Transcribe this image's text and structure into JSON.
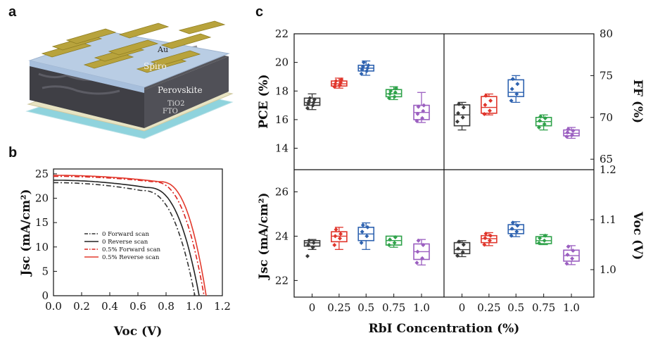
{
  "panel_labels": {
    "a": "a",
    "b": "b",
    "c": "c"
  },
  "device_layers": [
    "Au",
    "Spiro",
    "Perovskite",
    "TiO2",
    "FTO"
  ],
  "device_layer_colors": {
    "Au": "#b8a33c",
    "Spiro": "#b9cde4",
    "Perovskite": "#4a4a4f",
    "TiO2": "#e7e3c2",
    "FTO": "#8fd3dd"
  },
  "chart_data": [
    {
      "panel": "b",
      "type": "line",
      "xlabel": "Voc (V)",
      "ylabel": "Jsc (mA/cm²)",
      "xlim": [
        0,
        1.2
      ],
      "ylim": [
        0,
        26
      ],
      "xticks": [
        0.0,
        0.2,
        0.4,
        0.6,
        0.8,
        1.0,
        1.2
      ],
      "xtick_labels": [
        "0.0",
        "0.2",
        "0.4",
        "0.6",
        "0.8",
        "1.0",
        "1.2"
      ],
      "yticks": [
        0,
        5,
        10,
        15,
        20,
        25
      ],
      "ytick_labels": [
        "0",
        "5",
        "10",
        "15",
        "20",
        "25"
      ],
      "legend_position": "center-right",
      "series": [
        {
          "name": "0 Forward scan",
          "color": "#333333",
          "dash": "dashdot",
          "jsc": 23.2,
          "voc": 1.005,
          "knee_v": 0.62,
          "knee_j": 21.6
        },
        {
          "name": "0 Reverse scan",
          "color": "#222222",
          "dash": "solid",
          "jsc": 23.7,
          "voc": 1.035,
          "knee_v": 0.66,
          "knee_j": 22.2
        },
        {
          "name": "0.5% Forward scan",
          "color": "#d9231f",
          "dash": "dashdot",
          "jsc": 24.5,
          "voc": 1.07,
          "knee_v": 0.7,
          "knee_j": 23.4
        },
        {
          "name": "0.5% Reverse scan",
          "color": "#e33b2e",
          "dash": "solid",
          "jsc": 24.7,
          "voc": 1.085,
          "knee_v": 0.75,
          "knee_j": 23.4
        }
      ]
    },
    {
      "panel": "c",
      "type": "box",
      "xlabel": "RbI Concentration (%)",
      "categories": [
        "0",
        "0.25",
        "0.5",
        "0.75",
        "1.0"
      ],
      "category_colors": [
        "#3a3a3a",
        "#e0352b",
        "#2f63b0",
        "#2fa24a",
        "#9b5fc0"
      ],
      "subplots": [
        {
          "name": "PCE",
          "position": "top-left",
          "ylabel": "PCE (%)",
          "ylim": [
            12.5,
            22
          ],
          "yticks": [
            14,
            16,
            18,
            20,
            22
          ],
          "ytick_labels": [
            "14",
            "16",
            "18",
            "20",
            "22"
          ],
          "ytick_side": "left",
          "boxes": [
            {
              "min": 16.7,
              "q1": 17.0,
              "median": 17.2,
              "q3": 17.5,
              "max": 17.8,
              "points": [
                16.8,
                17.0,
                17.1,
                17.2,
                17.3,
                17.4,
                17.5
              ]
            },
            {
              "min": 18.2,
              "q1": 18.35,
              "median": 18.5,
              "q3": 18.7,
              "max": 18.9,
              "points": [
                18.3,
                18.4,
                18.5,
                18.6,
                18.7,
                18.8
              ]
            },
            {
              "min": 19.1,
              "q1": 19.4,
              "median": 19.6,
              "q3": 19.8,
              "max": 20.1,
              "points": [
                19.2,
                19.4,
                19.5,
                19.6,
                19.7,
                19.8,
                20.0
              ]
            },
            {
              "min": 17.4,
              "q1": 17.6,
              "median": 17.8,
              "q3": 18.1,
              "max": 18.3,
              "points": [
                17.5,
                17.6,
                17.8,
                17.9,
                18.0,
                18.2
              ]
            },
            {
              "min": 15.8,
              "q1": 16.0,
              "median": 16.5,
              "q3": 17.0,
              "max": 17.9,
              "points": [
                15.9,
                16.1,
                16.4,
                16.6,
                16.9,
                17.0
              ]
            }
          ]
        },
        {
          "name": "FF",
          "position": "top-right",
          "ylabel": "FF (%)",
          "ylim": [
            63.75,
            80
          ],
          "yticks": [
            65,
            70,
            75,
            80
          ],
          "ytick_labels": [
            "65",
            "70",
            "75",
            "80"
          ],
          "ytick_side": "right",
          "boxes": [
            {
              "min": 68.5,
              "q1": 69.0,
              "median": 70.3,
              "q3": 71.5,
              "max": 71.8,
              "points": [
                69.5,
                70.0,
                70.5,
                71.2,
                71.6
              ]
            },
            {
              "min": 70.3,
              "q1": 70.5,
              "median": 71.2,
              "q3": 72.5,
              "max": 72.8,
              "points": [
                70.4,
                70.8,
                71.5,
                72.0,
                72.6
              ]
            },
            {
              "min": 71.8,
              "q1": 72.5,
              "median": 73.0,
              "q3": 74.5,
              "max": 75.0,
              "points": [
                72.0,
                72.8,
                73.4,
                74.0,
                74.6
              ]
            },
            {
              "min": 68.5,
              "q1": 69.0,
              "median": 69.5,
              "q3": 70.0,
              "max": 70.3,
              "points": [
                68.8,
                69.2,
                69.6,
                69.9,
                70.1
              ]
            },
            {
              "min": 67.5,
              "q1": 67.8,
              "median": 68.1,
              "q3": 68.5,
              "max": 68.8,
              "points": [
                67.7,
                67.9,
                68.2,
                68.4,
                68.6
              ]
            }
          ]
        },
        {
          "name": "Jsc",
          "position": "bottom-left",
          "ylabel": "Jsc (mA/cm²)",
          "ylim": [
            21.25,
            27.0
          ],
          "yticks": [
            22,
            24,
            26
          ],
          "ytick_labels": [
            "22",
            "24",
            "26"
          ],
          "ytick_side": "left",
          "boxes": [
            {
              "min": 23.4,
              "q1": 23.55,
              "median": 23.7,
              "q3": 23.8,
              "max": 23.85,
              "points": [
                23.1,
                23.5,
                23.6,
                23.7,
                23.8
              ]
            },
            {
              "min": 23.4,
              "q1": 23.75,
              "median": 24.0,
              "q3": 24.2,
              "max": 24.4,
              "points": [
                23.6,
                23.9,
                24.0,
                24.1,
                24.3
              ]
            },
            {
              "min": 23.4,
              "q1": 23.8,
              "median": 24.1,
              "q3": 24.4,
              "max": 24.6,
              "points": [
                23.7,
                24.0,
                24.2,
                24.4,
                24.5
              ]
            },
            {
              "min": 23.5,
              "q1": 23.6,
              "median": 23.8,
              "q3": 24.0,
              "max": 24.0,
              "points": [
                23.6,
                23.7,
                23.85,
                23.95
              ]
            },
            {
              "min": 22.7,
              "q1": 22.95,
              "median": 23.3,
              "q3": 23.65,
              "max": 23.85,
              "points": [
                22.8,
                23.0,
                23.3,
                23.6,
                23.8
              ]
            }
          ]
        },
        {
          "name": "Voc",
          "position": "bottom-right",
          "ylabel": "Voc (V)",
          "ylim": [
            0.945,
            1.2
          ],
          "yticks": [
            1.0,
            1.1,
            1.2
          ],
          "ytick_labels": [
            "1.0",
            "1.1",
            "1.2"
          ],
          "ytick_side": "right",
          "boxes": [
            {
              "min": 1.026,
              "q1": 1.032,
              "median": 1.04,
              "q3": 1.054,
              "max": 1.058,
              "points": [
                1.028,
                1.035,
                1.042,
                1.05,
                1.056
              ]
            },
            {
              "min": 1.048,
              "q1": 1.054,
              "median": 1.062,
              "q3": 1.068,
              "max": 1.074,
              "points": [
                1.05,
                1.058,
                1.063,
                1.068,
                1.072
              ]
            },
            {
              "min": 1.066,
              "q1": 1.072,
              "median": 1.08,
              "q3": 1.09,
              "max": 1.096,
              "points": [
                1.068,
                1.076,
                1.082,
                1.088,
                1.094
              ]
            },
            {
              "min": 1.05,
              "q1": 1.052,
              "median": 1.058,
              "q3": 1.066,
              "max": 1.07,
              "points": [
                1.053,
                1.058,
                1.063,
                1.068
              ]
            },
            {
              "min": 1.01,
              "q1": 1.017,
              "median": 1.028,
              "q3": 1.039,
              "max": 1.048,
              "points": [
                1.012,
                1.022,
                1.03,
                1.038,
                1.046
              ]
            }
          ]
        }
      ]
    }
  ]
}
